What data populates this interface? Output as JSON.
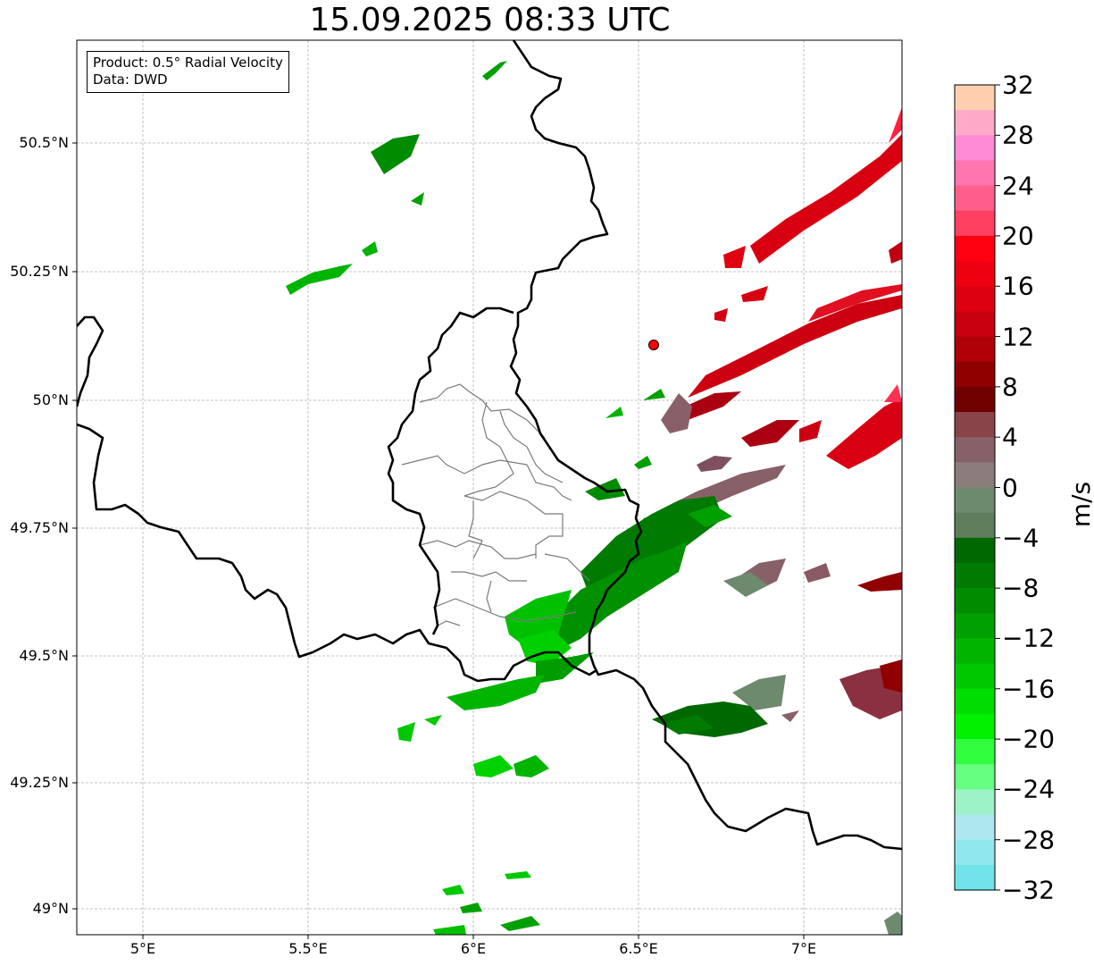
{
  "title": "15.09.2025 08:33 UTC",
  "info_box": {
    "line1": "Product: 0.5° Radial Velocity",
    "line2": "Data: DWD"
  },
  "lat_labels": [
    "50.5°N",
    "50.25°N",
    "50°N",
    "49.75°N",
    "49.5°N",
    "49.25°N",
    "49°N"
  ],
  "lon_labels": [
    "5°E",
    "5.5°E",
    "6°E",
    "6.5°E",
    "7°E"
  ],
  "colorbar": {
    "unit": "m/s",
    "ticks": [
      "32",
      "28",
      "24",
      "20",
      "16",
      "12",
      "8",
      "4",
      "0",
      "−4",
      "−8",
      "−12",
      "−16",
      "−20",
      "−24",
      "−28",
      "−32"
    ],
    "colors_top_to_bottom": [
      "#ffcfb0",
      "#ffaac8",
      "#ff8ad6",
      "#ff75b0",
      "#ff5f8a",
      "#ff4060",
      "#ff0010",
      "#ee0010",
      "#dd0010",
      "#c80010",
      "#b00008",
      "#900000",
      "#700000",
      "#884448",
      "#886068",
      "#8c7c7c",
      "#6e8a6e",
      "#5e7e5c",
      "#006800",
      "#007a00",
      "#008c00",
      "#00a000",
      "#00b400",
      "#00c800",
      "#00dd00",
      "#00f000",
      "#30ff40",
      "#66ff80",
      "#9ef2c8",
      "#aee8ee",
      "#90e8ee",
      "#70e4e8"
    ]
  },
  "radar_site_color": "#ff0000"
}
